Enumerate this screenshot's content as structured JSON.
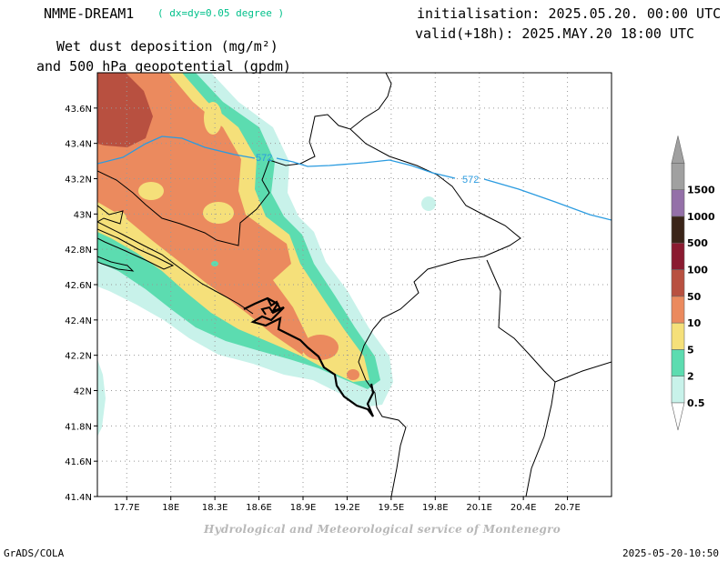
{
  "header": {
    "model": "NMME-DREAM1",
    "resolution": "( dx=dy=0.05 degree )",
    "title_line1": "Wet dust deposition (mg/m²)",
    "title_line2": "and 500 hPa geopotential (gpdm)",
    "init": "initialisation: 2025.05.20. 00:00 UTC",
    "valid": "valid(+18h): 2025.MAY.20 18:00 UTC"
  },
  "footer": {
    "credit": "Hydrological and Meteorological service of Montenegro",
    "software": "GrADS/COLA",
    "timestamp": "2025-05-20-10:50"
  },
  "map": {
    "lon_range": [
      17.5,
      21.0
    ],
    "lat_range": [
      41.4,
      43.8
    ],
    "grid": true,
    "lon_ticks": [
      "17.7E",
      "18E",
      "18.3E",
      "18.6E",
      "18.9E",
      "19.2E",
      "19.5E",
      "19.8E",
      "20.1E",
      "20.4E",
      "20.7E"
    ],
    "lat_ticks": [
      "41.4N",
      "41.6N",
      "41.8N",
      "42N",
      "42.2N",
      "42.4N",
      "42.6N",
      "42.8N",
      "43N",
      "43.2N",
      "43.4N",
      "43.6N"
    ],
    "contour_labels": [
      {
        "text": "572",
        "color": "#2a9be0"
      },
      {
        "text": "572",
        "color": "#2a9be0"
      }
    ]
  },
  "legend": {
    "levels": [
      "0.5",
      "2",
      "5",
      "10",
      "50",
      "100",
      "500",
      "1000",
      "1500"
    ],
    "colors": [
      "#c8f2ea",
      "#5cdcb0",
      "#f5e07a",
      "#eb8a5e",
      "#b85040",
      "#8a1a30",
      "#3a2418",
      "#9470a8",
      "#a0a0a0"
    ]
  }
}
